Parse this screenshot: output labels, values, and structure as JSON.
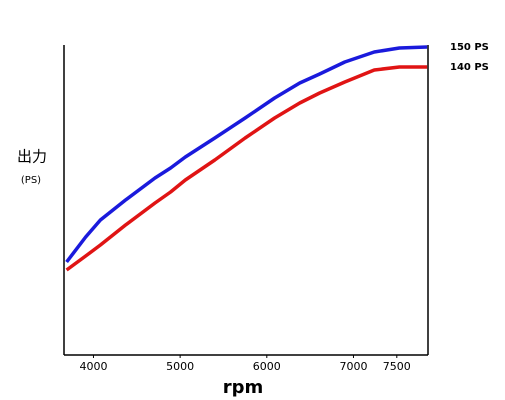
{
  "chart_data": {
    "type": "line",
    "y_label": "出力",
    "y_unit_label": "(PS)",
    "x_label": "rpm",
    "x": [
      3690,
      3910,
      4080,
      4370,
      4710,
      4890,
      5060,
      5400,
      5750,
      6090,
      6380,
      6610,
      6900,
      7240,
      7530,
      7850
    ],
    "series": [
      {
        "name": "150 PS",
        "color": "#1a1adc",
        "values": [
          42.5,
          55,
          63.5,
          73.5,
          84.5,
          89.5,
          95,
          104.5,
          114.5,
          124.5,
          132,
          136.5,
          142.5,
          147.5,
          149.5,
          150
        ]
      },
      {
        "name": "140 PS",
        "color": "#e01414",
        "values": [
          38.5,
          45.5,
          51,
          61,
          72,
          77.5,
          83.5,
          93.5,
          104.5,
          114.5,
          122,
          127,
          132.5,
          138.5,
          140,
          140
        ]
      }
    ],
    "xlim": [
      3660,
      7860
    ],
    "xticks": [
      4000,
      5000,
      6000,
      7000,
      7500
    ],
    "ylim": [
      -4,
      151
    ]
  }
}
